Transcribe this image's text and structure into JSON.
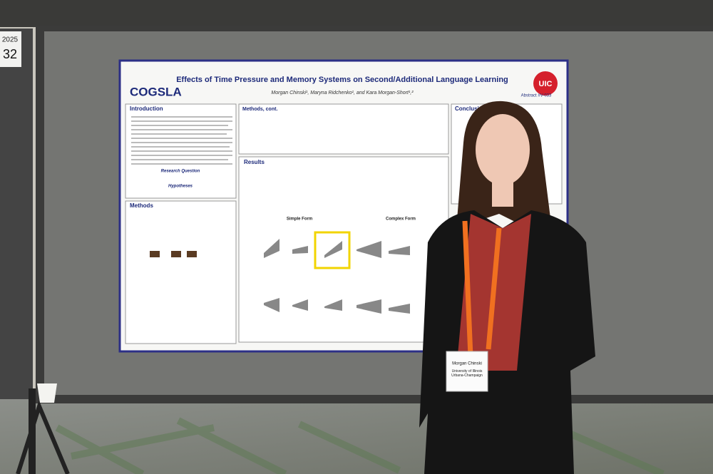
{
  "sign": {
    "year": "2025",
    "number": "32"
  },
  "poster": {
    "title": "Effects of Time Pressure and Memory Systems on Second/Additional Language Learning",
    "lab_logo": "COGSLA",
    "university_logo": "UIC",
    "authors": "Morgan Chinski¹, Maryna Ridchenko¹, and Kara Morgan-Short¹,²",
    "abstract": "Abstract #V-033",
    "sections": {
      "introduction": "Introduction",
      "methods": "Methods",
      "methods_cont": "Methods, cont.",
      "results": "Results",
      "conclusions": "Conclusions"
    },
    "research_question": "Research Question",
    "hypotheses": "Hypotheses",
    "panels": {
      "simple": "Simple Form",
      "complex": "Complex Form"
    }
  },
  "badge": {
    "name": "Morgan Chinski",
    "affiliation": "University of Illinois Urbana-Champaign"
  }
}
